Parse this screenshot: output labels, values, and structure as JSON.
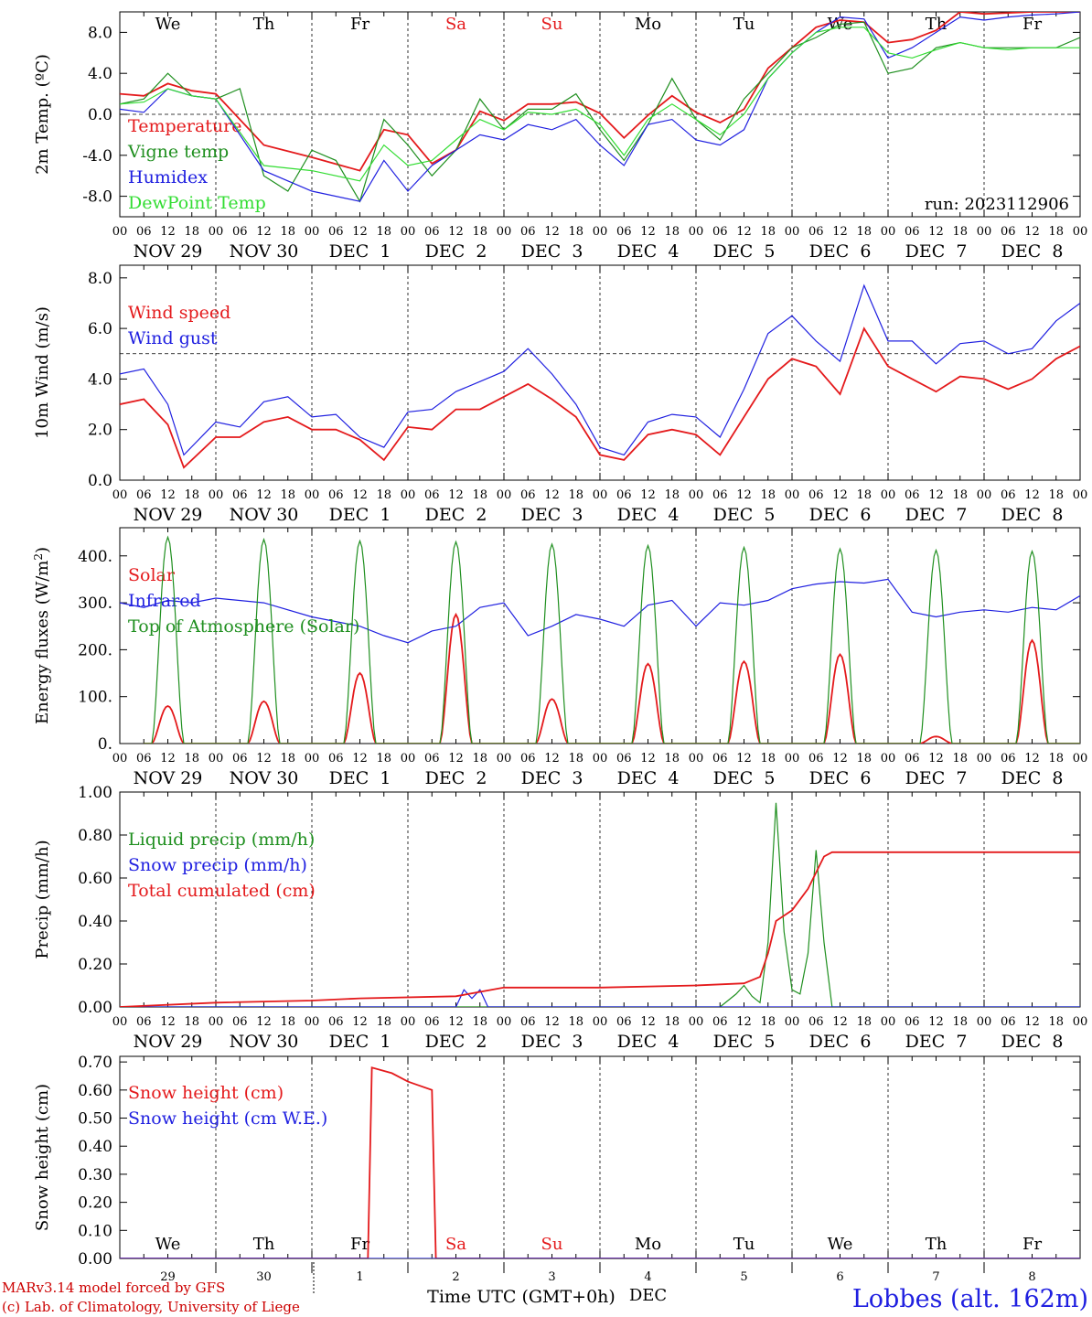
{
  "colors": {
    "red": "#e41a1c",
    "green": "#1f8f1f",
    "blue": "#2020e0",
    "lightgreen": "#33dd33",
    "axis": "#000000"
  },
  "weekdays": [
    "We",
    "Th",
    "Fr",
    "Sa",
    "Su",
    "Mo",
    "Tu",
    "We",
    "Th",
    "Fr"
  ],
  "weekday_colors": [
    "black",
    "black",
    "black",
    "red",
    "red",
    "black",
    "black",
    "black",
    "black",
    "black"
  ],
  "date_labels": [
    "NOV 29",
    "NOV 30",
    "DEC  1",
    "DEC  2",
    "DEC  3",
    "DEC  4",
    "DEC  5",
    "DEC  6",
    "DEC  7",
    "DEC  8"
  ],
  "hour_labels": [
    "00",
    "06",
    "12",
    "18"
  ],
  "hour_end_label": "00",
  "footer": {
    "day_numbers": [
      "29",
      "30",
      "1",
      "2",
      "3",
      "4",
      "5",
      "6",
      "7",
      "8"
    ],
    "month": "DEC",
    "xlabel": "Time UTC (GMT+0h)",
    "credit_line1": "MARv3.14 model forced by GFS",
    "credit_line2": "(c) Lab. of Climatology, University of Liege",
    "location": "Lobbes (alt. 162m)"
  },
  "chart_data": [
    {
      "type": "line",
      "ylabel": "2m Temp. (ºC)",
      "ylim": [
        -10,
        10
      ],
      "yticks": [
        8,
        4,
        0,
        -4,
        -8
      ],
      "ytick_labels": [
        "8.0",
        "4.0",
        "0.0",
        "-4.0",
        "-8.0"
      ],
      "ref_line": 0,
      "run_label": "run: 2023112906",
      "x_unit": "hours since 2023-11-29 00 UTC",
      "series": [
        {
          "name": "Temperature",
          "color": "red",
          "x": [
            0,
            6,
            12,
            18,
            24,
            36,
            48,
            60,
            66,
            72,
            78,
            84,
            90,
            96,
            102,
            108,
            114,
            120,
            126,
            132,
            138,
            144,
            150,
            156,
            162,
            168,
            174,
            180,
            186,
            192,
            198,
            204,
            210,
            216,
            222,
            228,
            234,
            240
          ],
          "y": [
            2.0,
            1.8,
            3.0,
            2.3,
            2.0,
            -3.0,
            -4.2,
            -5.5,
            -1.5,
            -2.0,
            -4.8,
            -3.5,
            0.3,
            -0.6,
            1.0,
            1.0,
            1.2,
            0.1,
            -2.3,
            -0.1,
            1.8,
            0.2,
            -0.8,
            0.5,
            4.5,
            6.5,
            8.5,
            9.2,
            9.0,
            7.0,
            7.3,
            8.2,
            10.0,
            9.8,
            9.9,
            10.0,
            10.0,
            10.0
          ]
        },
        {
          "name": "Vigne temp",
          "color": "green",
          "x": [
            0,
            6,
            12,
            18,
            24,
            30,
            36,
            42,
            48,
            54,
            60,
            66,
            72,
            78,
            84,
            90,
            96,
            102,
            108,
            114,
            120,
            126,
            132,
            138,
            144,
            150,
            156,
            162,
            168,
            174,
            180,
            186,
            192,
            198,
            204,
            210,
            216,
            222,
            228,
            234,
            240
          ],
          "y": [
            1.0,
            1.5,
            4.0,
            1.8,
            1.5,
            2.5,
            -6.0,
            -7.5,
            -3.5,
            -4.5,
            -8.5,
            -0.5,
            -3.0,
            -6.0,
            -3.5,
            1.5,
            -1.5,
            0.5,
            0.5,
            2.0,
            -1.5,
            -4.5,
            -1.0,
            3.5,
            -0.5,
            -2.5,
            1.5,
            4.0,
            6.5,
            7.5,
            8.8,
            9.0,
            4.0,
            4.5,
            6.5,
            7.0,
            6.5,
            6.5,
            6.5,
            6.5,
            7.5
          ]
        },
        {
          "name": "Humidex",
          "color": "blue",
          "x": [
            0,
            6,
            12,
            18,
            24,
            36,
            48,
            60,
            66,
            72,
            78,
            84,
            90,
            96,
            102,
            108,
            114,
            120,
            126,
            132,
            138,
            144,
            150,
            156,
            162,
            168,
            174,
            180,
            186,
            192,
            198,
            204,
            210,
            216,
            222,
            228,
            234,
            240
          ],
          "y": [
            0.5,
            0.2,
            2.5,
            1.8,
            1.5,
            -5.5,
            -7.5,
            -8.5,
            -4.5,
            -7.5,
            -5.0,
            -3.5,
            -2.0,
            -2.5,
            -1.0,
            -1.5,
            -0.5,
            -3.0,
            -5.0,
            -1.0,
            -0.5,
            -2.5,
            -3.0,
            -1.5,
            3.5,
            6.0,
            8.0,
            9.5,
            9.3,
            5.5,
            6.5,
            8.0,
            9.5,
            9.2,
            9.5,
            9.7,
            9.8,
            10.0
          ]
        },
        {
          "name": "DewPoint Temp",
          "color": "lightgreen",
          "x": [
            0,
            6,
            12,
            18,
            24,
            36,
            48,
            60,
            66,
            72,
            78,
            84,
            90,
            96,
            102,
            108,
            114,
            120,
            126,
            132,
            138,
            144,
            150,
            156,
            162,
            168,
            174,
            180,
            186,
            192,
            198,
            204,
            210,
            216,
            222,
            228,
            234,
            240
          ],
          "y": [
            1.0,
            1.2,
            2.5,
            1.8,
            1.5,
            -5.0,
            -5.5,
            -6.5,
            -3.0,
            -5.0,
            -4.5,
            -2.5,
            -0.5,
            -1.5,
            0.2,
            0.0,
            0.5,
            -1.0,
            -4.0,
            -0.5,
            1.0,
            -0.5,
            -2.0,
            0.0,
            3.5,
            6.0,
            8.0,
            8.5,
            8.5,
            6.0,
            5.5,
            6.3,
            7.0,
            6.5,
            6.3,
            6.5,
            6.5,
            6.5
          ]
        }
      ]
    },
    {
      "type": "line",
      "ylabel": "10m Wind (m/s)",
      "ylim": [
        0,
        8.5
      ],
      "yticks": [
        8,
        6,
        4,
        2,
        0
      ],
      "ytick_labels": [
        "8.0",
        "6.0",
        "4.0",
        "2.0",
        "0.0"
      ],
      "ref_line": 5,
      "series": [
        {
          "name": "Wind speed",
          "color": "red",
          "x": [
            0,
            6,
            12,
            16,
            24,
            30,
            36,
            42,
            48,
            54,
            60,
            66,
            72,
            78,
            84,
            90,
            96,
            102,
            108,
            114,
            120,
            126,
            132,
            138,
            144,
            150,
            156,
            162,
            168,
            174,
            180,
            186,
            192,
            198,
            204,
            210,
            216,
            222,
            228,
            234,
            240
          ],
          "y": [
            3.0,
            3.2,
            2.2,
            0.5,
            1.7,
            1.7,
            2.3,
            2.5,
            2.0,
            2.0,
            1.6,
            0.8,
            2.1,
            2.0,
            2.8,
            2.8,
            3.3,
            3.8,
            3.2,
            2.5,
            1.0,
            0.8,
            1.8,
            2.0,
            1.8,
            1.0,
            2.5,
            4.0,
            4.8,
            4.5,
            3.4,
            6.0,
            4.5,
            4.0,
            3.5,
            4.1,
            4.0,
            3.6,
            4.0,
            4.8,
            5.3
          ]
        },
        {
          "name": "Wind gust",
          "color": "blue",
          "x": [
            0,
            6,
            12,
            16,
            24,
            30,
            36,
            42,
            48,
            54,
            60,
            66,
            72,
            78,
            84,
            90,
            96,
            102,
            108,
            114,
            120,
            126,
            132,
            138,
            144,
            150,
            156,
            162,
            168,
            174,
            180,
            186,
            192,
            198,
            204,
            210,
            216,
            222,
            228,
            234,
            240
          ],
          "y": [
            4.2,
            4.4,
            3.0,
            1.0,
            2.3,
            2.1,
            3.1,
            3.3,
            2.5,
            2.6,
            1.7,
            1.3,
            2.7,
            2.8,
            3.5,
            3.9,
            4.3,
            5.2,
            4.2,
            3.0,
            1.3,
            1.0,
            2.3,
            2.6,
            2.5,
            1.7,
            3.6,
            5.8,
            6.5,
            5.5,
            4.7,
            7.7,
            5.5,
            5.5,
            4.6,
            5.4,
            5.5,
            5.0,
            5.2,
            6.3,
            7.0
          ]
        }
      ]
    },
    {
      "type": "line",
      "ylabel": "Energy fluxes (W/m2)",
      "ylim": [
        0,
        460
      ],
      "yticks": [
        400,
        300,
        200,
        100,
        0
      ],
      "ytick_labels": [
        "400.",
        "300.",
        "200.",
        "100.",
        "0."
      ],
      "series": [
        {
          "name": "Solar",
          "peaks": [
            80,
            90,
            150,
            275,
            95,
            170,
            175,
            190,
            15,
            220
          ],
          "color": "red"
        },
        {
          "name": "Infrared",
          "color": "blue",
          "x": [
            0,
            6,
            12,
            18,
            24,
            36,
            48,
            60,
            66,
            72,
            78,
            84,
            90,
            96,
            102,
            108,
            114,
            120,
            126,
            132,
            138,
            144,
            150,
            156,
            162,
            168,
            174,
            180,
            186,
            192,
            198,
            204,
            210,
            216,
            222,
            228,
            234,
            240
          ],
          "y": [
            300,
            290,
            305,
            300,
            310,
            300,
            270,
            250,
            230,
            215,
            240,
            250,
            290,
            300,
            230,
            250,
            275,
            265,
            250,
            295,
            305,
            250,
            300,
            295,
            305,
            330,
            340,
            345,
            342,
            350,
            280,
            270,
            280,
            285,
            280,
            290,
            285,
            315
          ]
        },
        {
          "name": "Top of Atmosphere (Solar)",
          "peaks": [
            440,
            435,
            432,
            430,
            425,
            422,
            418,
            415,
            412,
            410
          ],
          "color": "green"
        }
      ]
    },
    {
      "type": "line",
      "ylabel": "Precip (mm/h)",
      "ylim": [
        0,
        1.0
      ],
      "yticks": [
        1.0,
        0.8,
        0.6,
        0.4,
        0.2,
        0.0
      ],
      "ytick_labels": [
        "1.00",
        "0.80",
        "0.60",
        "0.40",
        "0.20",
        "0.00"
      ],
      "series": [
        {
          "name": "Liquid precip (mm/h)",
          "color": "green",
          "x": [
            0,
            150,
            154,
            156,
            158,
            160,
            162,
            164,
            166,
            168,
            170,
            172,
            174,
            176,
            178,
            240
          ],
          "y": [
            0,
            0,
            0.06,
            0.1,
            0.05,
            0.02,
            0.3,
            0.95,
            0.35,
            0.08,
            0.06,
            0.25,
            0.73,
            0.3,
            0,
            0
          ]
        },
        {
          "name": "Snow precip (mm/h)",
          "color": "blue",
          "x": [
            0,
            84,
            86,
            88,
            90,
            92,
            240
          ],
          "y": [
            0,
            0,
            0.08,
            0.04,
            0.08,
            0,
            0
          ]
        },
        {
          "name": "Total cumulated (cm)",
          "color": "red",
          "x": [
            0,
            24,
            48,
            60,
            84,
            96,
            120,
            144,
            156,
            160,
            162,
            164,
            168,
            172,
            176,
            178,
            240
          ],
          "y": [
            0,
            0.02,
            0.03,
            0.04,
            0.05,
            0.09,
            0.09,
            0.1,
            0.11,
            0.14,
            0.25,
            0.4,
            0.45,
            0.55,
            0.7,
            0.72,
            0.72
          ]
        }
      ]
    },
    {
      "type": "line",
      "ylabel": "Snow height (cm)",
      "ylim": [
        0,
        0.72
      ],
      "yticks": [
        0.7,
        0.6,
        0.5,
        0.4,
        0.3,
        0.2,
        0.1,
        0.0
      ],
      "ytick_labels": [
        "0.70",
        "0.60",
        "0.50",
        "0.40",
        "0.30",
        "0.20",
        "0.10",
        "0.00"
      ],
      "series": [
        {
          "name": "Snow height (cm)",
          "color": "red",
          "x": [
            0,
            62,
            63,
            68,
            72,
            74,
            78,
            79,
            240
          ],
          "y": [
            0,
            0,
            0.68,
            0.66,
            0.63,
            0.62,
            0.6,
            0,
            0
          ]
        },
        {
          "name": "Snow height (cm W.E.)",
          "color": "blue",
          "x": [
            0,
            240
          ],
          "y": [
            0,
            0
          ]
        }
      ]
    }
  ]
}
